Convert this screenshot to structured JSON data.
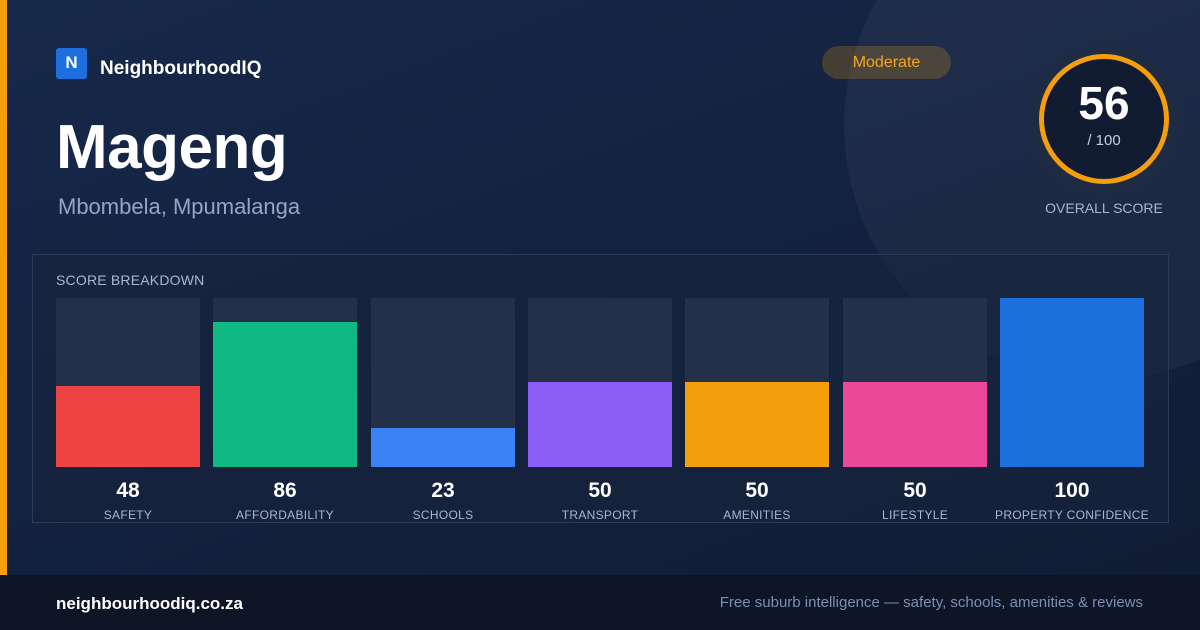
{
  "brand": {
    "logo_letter": "N",
    "name": "NeighbourhoodIQ"
  },
  "suburb": {
    "name": "Mageng",
    "location": "Mbombela, Mpumalanga"
  },
  "rating_badge": "Moderate",
  "overall": {
    "score": "56",
    "max": "/ 100",
    "caption": "OVERALL SCORE",
    "fraction": 0.56
  },
  "breakdown": {
    "title": "SCORE BREAKDOWN",
    "items": [
      {
        "label": "SAFETY",
        "value": "48",
        "score": 48,
        "color": "#ef4444"
      },
      {
        "label": "AFFORDABILITY",
        "value": "86",
        "score": 86,
        "color": "#10b981"
      },
      {
        "label": "SCHOOLS",
        "value": "23",
        "score": 23,
        "color": "#3b82f6"
      },
      {
        "label": "TRANSPORT",
        "value": "50",
        "score": 50,
        "color": "#8b5cf6"
      },
      {
        "label": "AMENITIES",
        "value": "50",
        "score": 50,
        "color": "#f59e0b"
      },
      {
        "label": "LIFESTYLE",
        "value": "50",
        "score": 50,
        "color": "#ec4899"
      },
      {
        "label": "PROPERTY CONFIDENCE",
        "value": "100",
        "score": 100,
        "color": "#1d6fde"
      }
    ]
  },
  "footer": {
    "domain": "neighbourhoodiq.co.za",
    "tagline": "Free suburb intelligence — safety, schools, amenities & reviews"
  },
  "colors": {
    "accent": "#f59e0b",
    "brand": "#1d6fde",
    "background": "#14203a"
  }
}
